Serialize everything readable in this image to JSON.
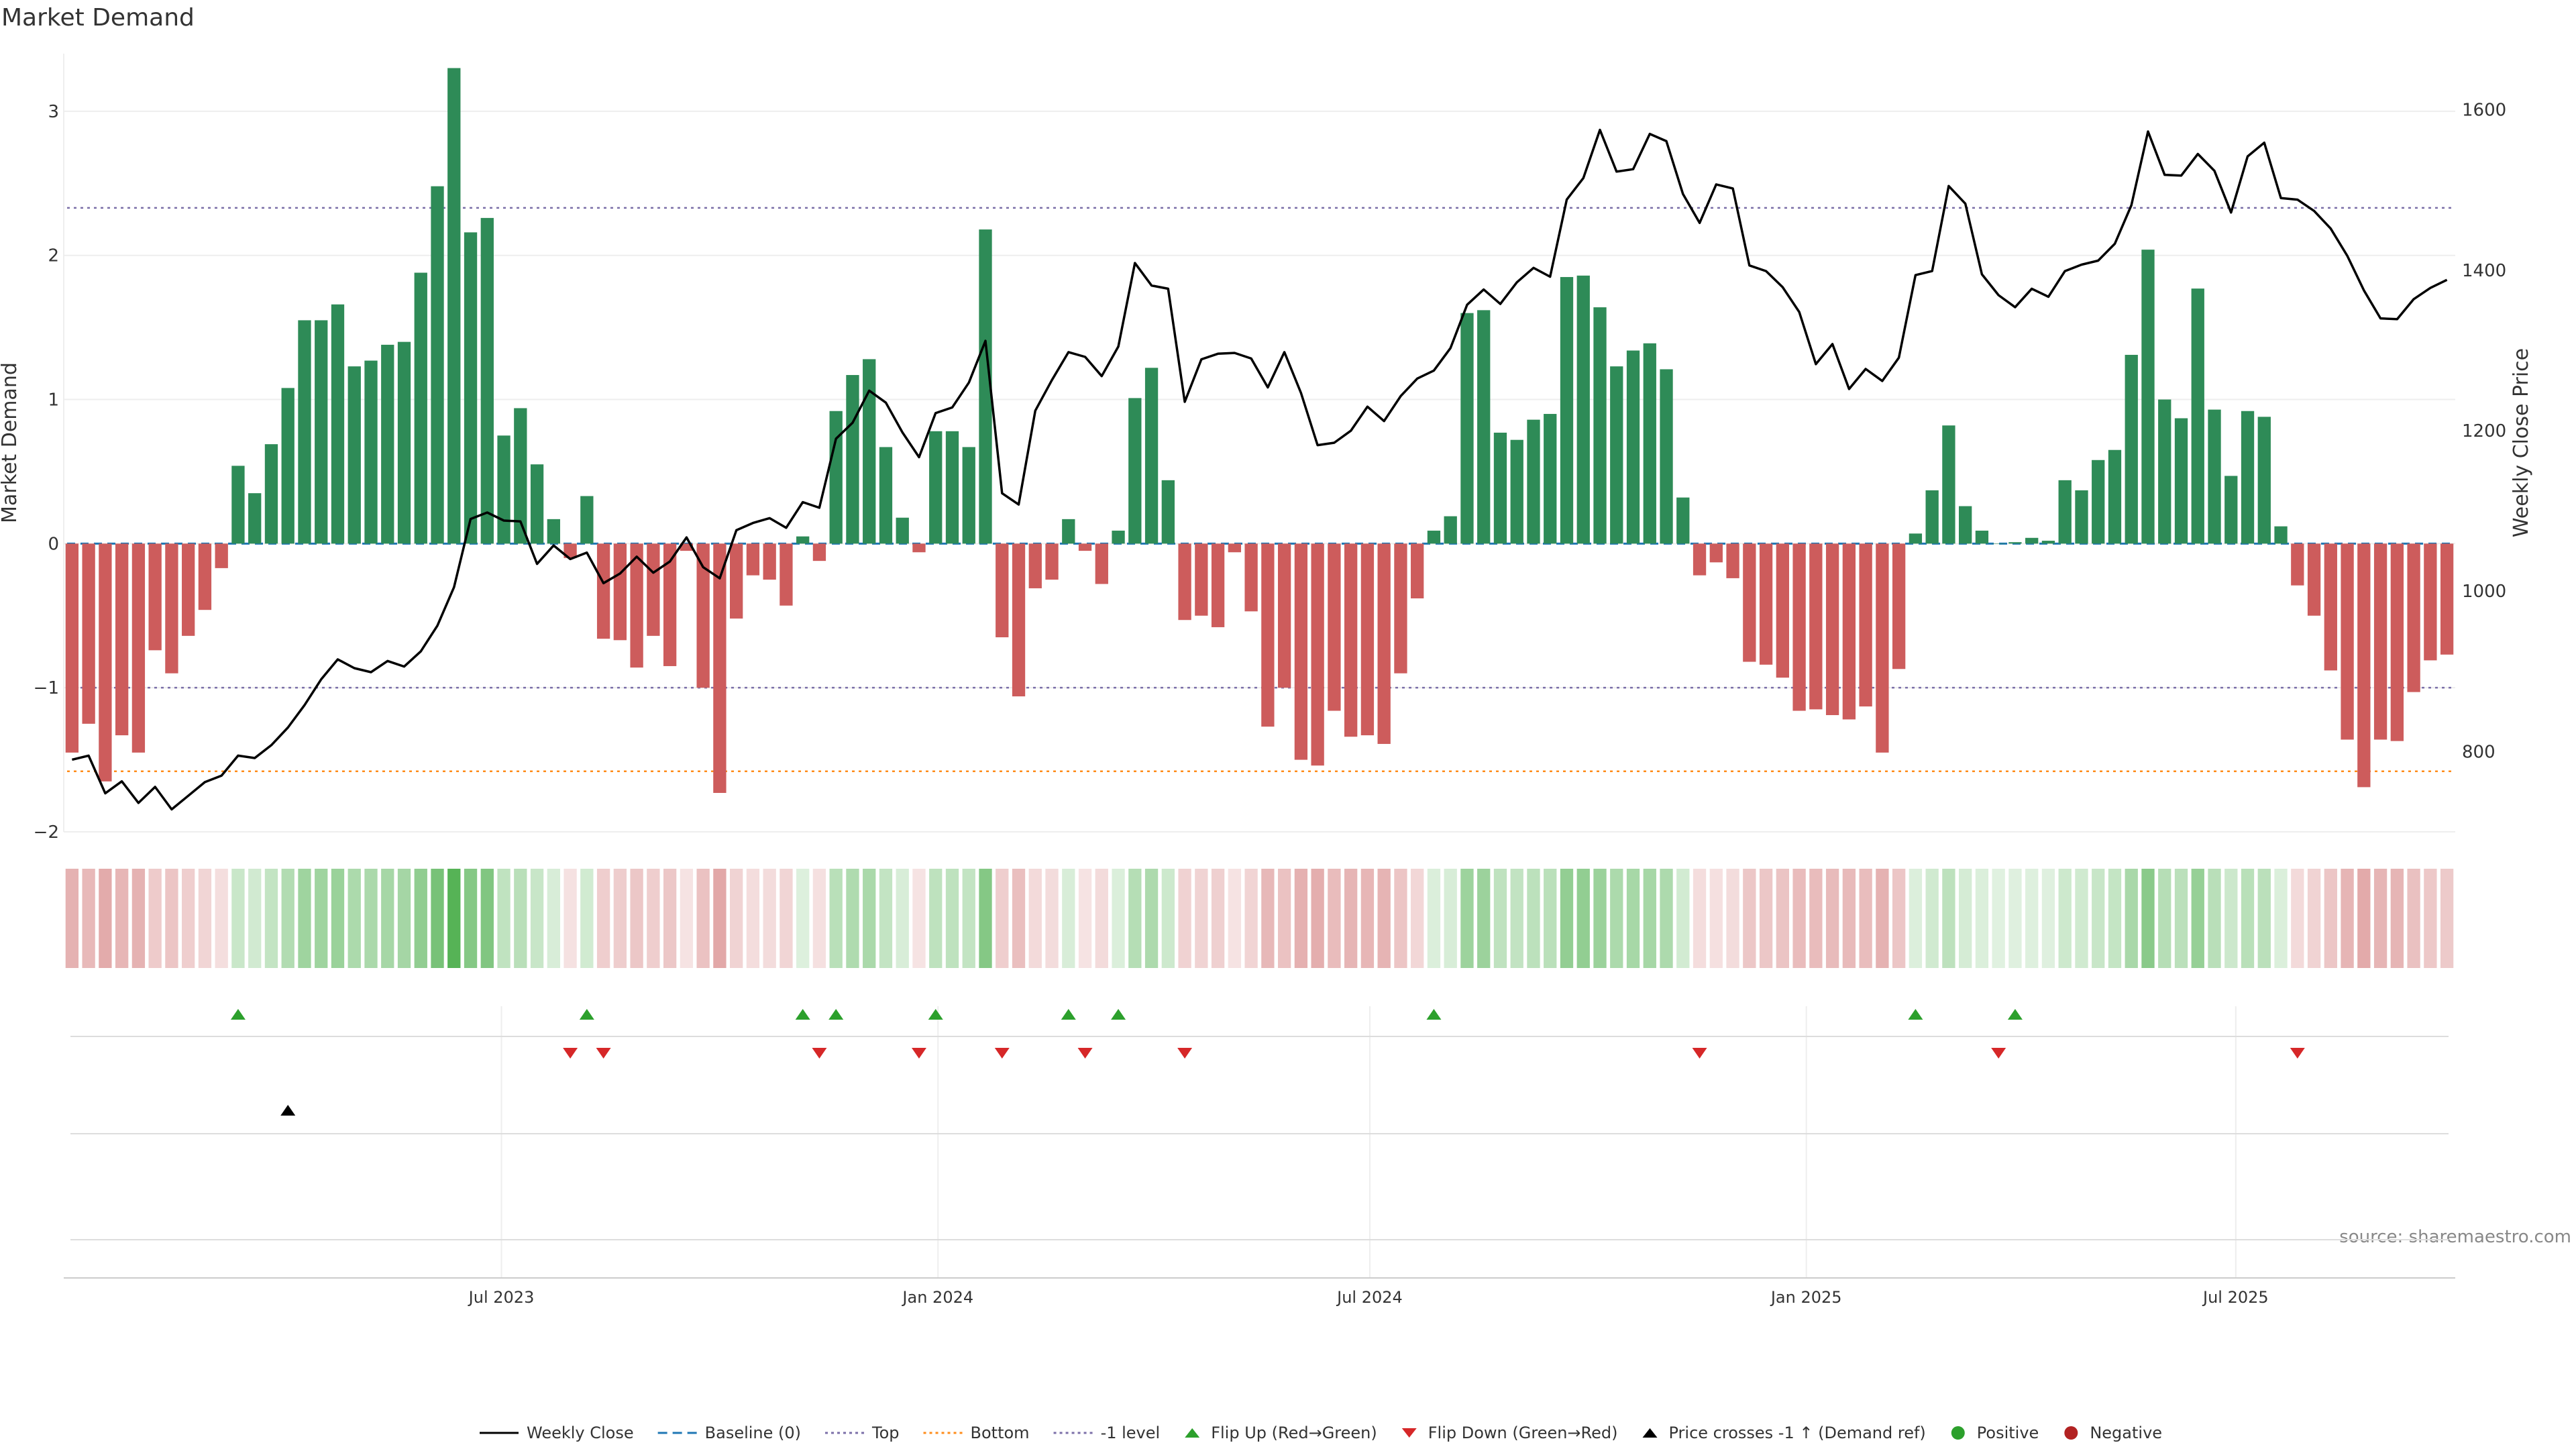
{
  "chart_data": {
    "type": "bar",
    "title": "Market Demand",
    "ylabel": "Market Demand",
    "y2label": "Weekly Close Price",
    "ylim": [
      -2.0,
      3.4
    ],
    "y2lim": [
      700,
      1670
    ],
    "yticks": [
      -2,
      -1,
      0,
      1,
      2,
      3
    ],
    "y2ticks": [
      800,
      1000,
      1200,
      1400,
      1600
    ],
    "x_start": "2023-01-01",
    "x_step_days": 7,
    "xticks": [
      {
        "date": "2023-07-01",
        "label": "Jul 2023"
      },
      {
        "date": "2024-01-01",
        "label": "Jan 2024"
      },
      {
        "date": "2024-07-01",
        "label": "Jul 2024"
      },
      {
        "date": "2025-01-01",
        "label": "Jan 2025"
      },
      {
        "date": "2025-07-01",
        "label": "Jul 2025"
      }
    ],
    "reference_lines": [
      {
        "name": "Baseline (0)",
        "value": 0,
        "color": "#1f77b4",
        "style": "dashed"
      },
      {
        "name": "Top",
        "value": 2.33,
        "color": "#7b6fa8",
        "style": "dotted"
      },
      {
        "name": "Bottom",
        "value": -1.58,
        "color": "#ff8c1a",
        "style": "dotted"
      },
      {
        "name": "-1 level",
        "value": -1,
        "color": "#7b6fa8",
        "style": "dotted"
      }
    ],
    "colors": {
      "positive": "#2e8b57",
      "negative": "#cd5c5c",
      "price": "#000000",
      "flip_up": "#2ca02c",
      "flip_down": "#d62728",
      "cross": "#000000"
    },
    "series": [
      {
        "name": "Market Demand",
        "values": [
          -1.45,
          -1.25,
          -1.65,
          -1.33,
          -1.45,
          -0.74,
          -0.9,
          -0.64,
          -0.46,
          -0.17,
          0.54,
          0.35,
          0.69,
          1.08,
          1.55,
          1.55,
          1.66,
          1.23,
          1.27,
          1.38,
          1.4,
          1.88,
          2.48,
          3.3,
          2.16,
          2.26,
          0.75,
          0.94,
          0.55,
          0.17,
          -0.1,
          0.33,
          -0.66,
          -0.67,
          -0.86,
          -0.64,
          -0.85,
          -0.05,
          -1.0,
          -1.73,
          -0.52,
          -0.22,
          -0.25,
          -0.43,
          0.05,
          -0.12,
          0.92,
          1.17,
          1.28,
          0.67,
          0.18,
          -0.06,
          0.78,
          0.78,
          0.67,
          2.18,
          -0.65,
          -1.06,
          -0.31,
          -0.25,
          0.17,
          -0.05,
          -0.28,
          0.09,
          1.01,
          1.22,
          0.44,
          -0.53,
          -0.5,
          -0.58,
          -0.06,
          -0.47,
          -1.27,
          -1.0,
          -1.5,
          -1.54,
          -1.16,
          -1.34,
          -1.33,
          -1.39,
          -0.9,
          -0.38,
          0.09,
          0.19,
          1.6,
          1.62,
          0.77,
          0.72,
          0.86,
          0.9,
          1.85,
          1.86,
          1.64,
          1.23,
          1.34,
          1.39,
          1.21,
          0.32,
          -0.22,
          -0.13,
          -0.24,
          -0.82,
          -0.84,
          -0.93,
          -1.16,
          -1.15,
          -1.19,
          -1.22,
          -1.13,
          -1.45,
          -0.87,
          0.07,
          0.37,
          0.82,
          0.26,
          0.09,
          0.0,
          0.01,
          0.04,
          0.02,
          0.44,
          0.37,
          0.58,
          0.65,
          1.31,
          2.04,
          1.0,
          0.87,
          1.77,
          0.93,
          0.47,
          0.92,
          0.88,
          0.12,
          -0.29,
          -0.5,
          -0.88,
          -1.36,
          -1.69,
          -1.36,
          -1.37,
          -1.03,
          -0.81,
          -0.77
        ]
      },
      {
        "name": "Weekly Close",
        "axis": "right",
        "values": [
          790,
          795,
          748,
          763,
          736,
          756,
          728,
          745,
          762,
          770,
          795,
          792,
          808,
          830,
          858,
          890,
          915,
          904,
          899,
          913,
          906,
          925,
          957,
          1005,
          1090,
          1098,
          1088,
          1087,
          1034,
          1057,
          1040,
          1048,
          1010,
          1022,
          1043,
          1023,
          1037,
          1067,
          1030,
          1016,
          1076,
          1085,
          1091,
          1079,
          1111,
          1104,
          1190,
          1210,
          1250,
          1235,
          1198,
          1167,
          1222,
          1229,
          1260,
          1312,
          1122,
          1108,
          1225,
          1263,
          1298,
          1292,
          1268,
          1305,
          1409,
          1381,
          1377,
          1236,
          1289,
          1296,
          1297,
          1290,
          1254,
          1298,
          1247,
          1182,
          1185,
          1200,
          1230,
          1212,
          1243,
          1265,
          1275,
          1303,
          1357,
          1376,
          1358,
          1385,
          1403,
          1392,
          1488,
          1515,
          1575,
          1523,
          1526,
          1570,
          1561,
          1495,
          1459,
          1507,
          1502,
          1406,
          1399,
          1379,
          1348,
          1283,
          1308,
          1252,
          1277,
          1262,
          1291,
          1394,
          1399,
          1505,
          1483,
          1395,
          1369,
          1354,
          1377,
          1367,
          1399,
          1407,
          1412,
          1433,
          1481,
          1573,
          1519,
          1518,
          1545,
          1524,
          1472,
          1542,
          1559,
          1490,
          1488,
          1474,
          1452,
          1418,
          1375,
          1340,
          1339,
          1364,
          1378,
          1388
        ]
      }
    ],
    "flip_up_weeks": [
      10,
      31,
      44,
      46,
      52,
      60,
      63,
      82,
      111,
      117
    ],
    "flip_down_weeks": [
      30,
      32,
      45,
      51,
      56,
      61,
      67,
      98,
      116,
      134
    ],
    "price_cross_weeks": [
      13
    ],
    "legend_position": "bottom-center"
  },
  "ui": {
    "title": "Market Demand",
    "source": "source: sharemaestro.com",
    "legend": [
      {
        "label": "Weekly Close",
        "kind": "line-solid",
        "color": "#000000"
      },
      {
        "label": "Baseline (0)",
        "kind": "line-dashed",
        "color": "#1f77b4"
      },
      {
        "label": "Top",
        "kind": "line-dotted",
        "color": "#7b6fa8"
      },
      {
        "label": "Bottom",
        "kind": "line-dotted",
        "color": "#ff8c1a"
      },
      {
        "label": "-1 level",
        "kind": "line-dotted",
        "color": "#7b6fa8"
      },
      {
        "label": "Flip Up (Red→Green)",
        "kind": "tri-up",
        "color": "#2ca02c"
      },
      {
        "label": "Flip Down (Green→Red)",
        "kind": "tri-down",
        "color": "#d62728"
      },
      {
        "label": "Price crosses -1 ↑ (Demand ref)",
        "kind": "tri-up",
        "color": "#000000"
      },
      {
        "label": "Positive",
        "kind": "dot",
        "color": "#2ca02c"
      },
      {
        "label": "Negative",
        "kind": "dot",
        "color": "#b22222"
      }
    ]
  }
}
